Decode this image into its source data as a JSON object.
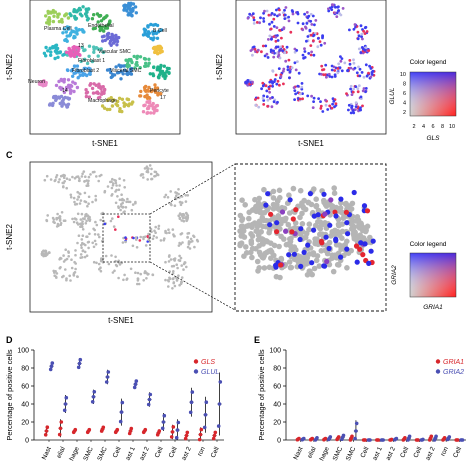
{
  "panel_labels": {
    "c": "C",
    "d": "D",
    "e": "E"
  },
  "tsne": {
    "xlabel": "t-SNE1",
    "ylabel": "t-SNE2"
  },
  "clusters": [
    "Plasma Cell",
    "Endothelial",
    "B Cell",
    "Vascular SMC",
    "Fibroblast 1",
    "Fibroblast 2",
    "Visceral SMC",
    "Neuron",
    "Macrophage",
    "Pericyte",
    "13",
    "14",
    "17"
  ],
  "legend_ab": {
    "title": "Color legend",
    "xgene": "GLS",
    "ygene": "GLUL",
    "ticks": [
      "2",
      "4",
      "6",
      "8",
      "10"
    ]
  },
  "legend_c": {
    "title": "Color legend",
    "xgene": "GRIA1",
    "ygene": "GRIA2"
  },
  "chart_data": [
    {
      "type": "scatter",
      "panel": "D",
      "ylabel": "Percentage of positive cells",
      "ylim": [
        0,
        100
      ],
      "yticks": [
        "0",
        "20",
        "40",
        "60",
        "80",
        "100"
      ],
      "category_tail": [
        "Nast",
        "elial",
        "hage",
        "SMC",
        "SMC",
        "Cell",
        "ast 1",
        "ast 2",
        "Cell",
        "Cell",
        "ast 2",
        "ron",
        "Cell"
      ],
      "series": [
        {
          "name": "GLS",
          "color": "#d7262b",
          "values": [
            10,
            13,
            10,
            10,
            12,
            10,
            10,
            10,
            8,
            9,
            5,
            6,
            5
          ],
          "err": [
            6,
            10,
            2,
            2,
            3,
            2,
            4,
            2,
            3,
            8,
            5,
            8,
            5
          ]
        },
        {
          "name": "GLUL",
          "color": "#4a4fb3",
          "values": [
            82,
            40,
            85,
            48,
            70,
            31,
            62,
            45,
            20,
            11,
            42,
            28,
            40
          ],
          "err": [
            5,
            10,
            6,
            8,
            8,
            15,
            5,
            8,
            10,
            12,
            16,
            20,
            35
          ]
        }
      ]
    },
    {
      "type": "scatter",
      "panel": "E",
      "ylabel": "Percentage of positive cells",
      "ylim": [
        0,
        100
      ],
      "yticks": [
        "0",
        "20",
        "40",
        "60",
        "80",
        "100"
      ],
      "category_tail": [
        "Nast",
        "elial",
        "hage",
        "SMC",
        "SMC",
        "Cell",
        "ast 1",
        "ast 2",
        "Cell",
        "Cell",
        "ast 2",
        "ron",
        "Cell"
      ],
      "series": [
        {
          "name": "GRIA1",
          "color": "#d7262b",
          "values": [
            1,
            1,
            1,
            2,
            2,
            0,
            0,
            0,
            1,
            0,
            2,
            1,
            0
          ],
          "err": [
            1,
            1,
            1,
            2,
            3,
            0,
            0,
            1,
            2,
            0,
            3,
            2,
            0
          ]
        },
        {
          "name": "GRIA2",
          "color": "#4a4fb3",
          "values": [
            1,
            1,
            2,
            3,
            10,
            0,
            0,
            1,
            2,
            0,
            2,
            2,
            0
          ],
          "err": [
            1,
            2,
            2,
            3,
            12,
            0,
            0,
            1,
            3,
            1,
            3,
            2,
            0
          ]
        }
      ]
    }
  ]
}
